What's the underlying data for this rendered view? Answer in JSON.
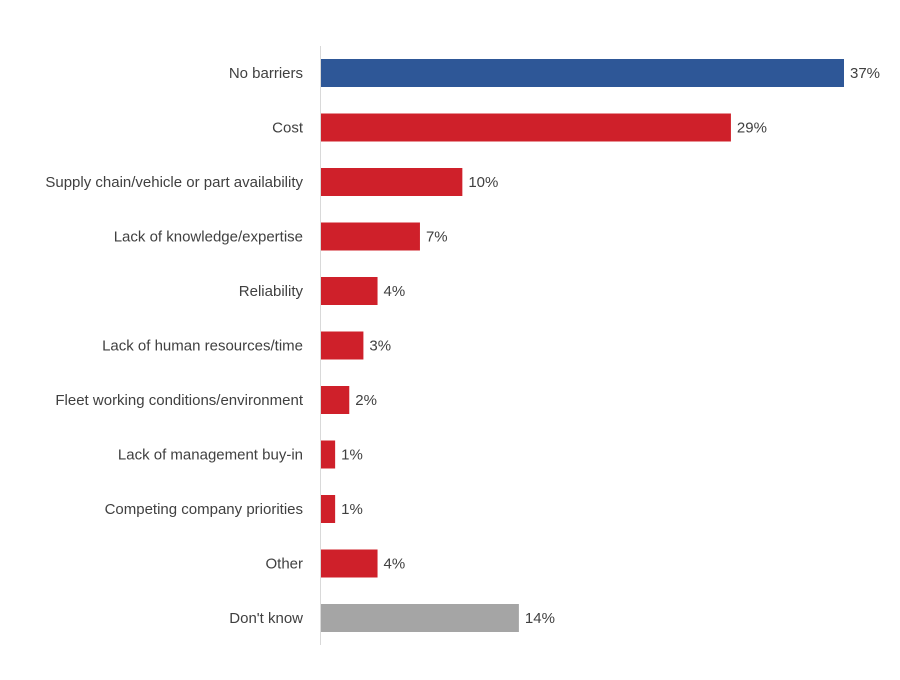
{
  "chart_data": {
    "type": "bar",
    "orientation": "horizontal",
    "title": "",
    "xlabel": "",
    "ylabel": "",
    "xlim": [
      0,
      37
    ],
    "grid": false,
    "legend": "none",
    "categories": [
      "No barriers",
      "Cost",
      "Supply chain/vehicle or part availability",
      "Lack of knowledge/expertise",
      "Reliability",
      "Lack of human resources/time",
      "Fleet working conditions/environment",
      "Lack of management buy-in",
      "Competing company priorities",
      "Other",
      "Don't know"
    ],
    "values": [
      37,
      29,
      10,
      7,
      4,
      3,
      2,
      1,
      1,
      4,
      14
    ],
    "data_labels": [
      "37%",
      "29%",
      "10%",
      "7%",
      "4%",
      "3%",
      "2%",
      "1%",
      "1%",
      "4%",
      "14%"
    ],
    "bar_colors": [
      "#2E5797",
      "#CF202A",
      "#CF202A",
      "#CF202A",
      "#CF202A",
      "#CF202A",
      "#CF202A",
      "#CF202A",
      "#CF202A",
      "#CF202A",
      "#A5A5A5"
    ]
  }
}
